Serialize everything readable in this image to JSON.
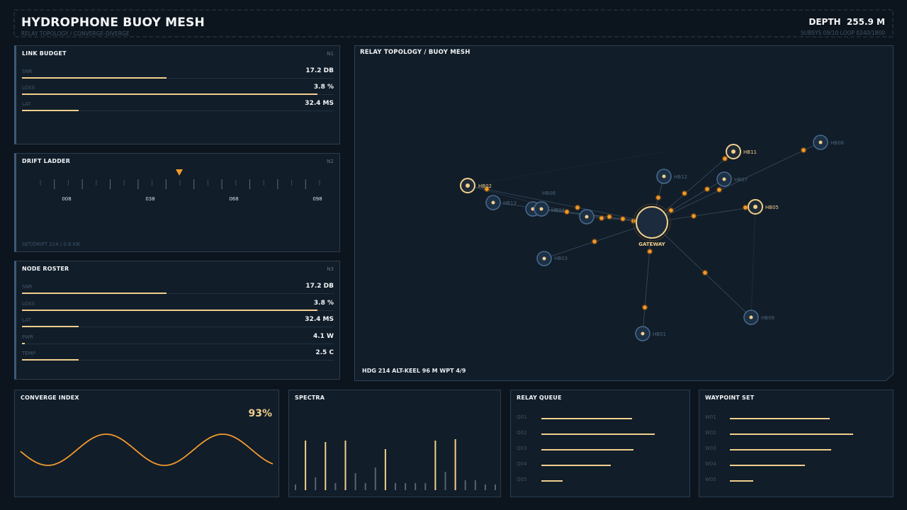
{
  "header": {
    "title": "HYDROPHONE BUOY MESH",
    "subtitle": "RELAY TOPOLOGY / CONVERGE-DIVERGE",
    "depth_label": "DEPTH",
    "depth_value": "255.9 M",
    "subsys": "SUBSYS 09/10  LOOP 0240/1800"
  },
  "link_budget": {
    "title": "LINK BUDGET",
    "tag": "N1",
    "metrics": [
      {
        "label": "SNR",
        "value": "17.2 DB",
        "fill": 0.46
      },
      {
        "label": "LOSS",
        "value": "3.8 %",
        "fill": 0.94
      },
      {
        "label": "LAT",
        "value": "32.4 MS",
        "fill": 0.18
      }
    ]
  },
  "drift_ladder": {
    "title": "DRIFT LADDER",
    "tag": "N2",
    "ticks": [
      "008",
      "038",
      "068",
      "098"
    ],
    "footer": "SET/DRIFT 214 / 0.6 KN"
  },
  "node_roster": {
    "title": "NODE ROSTER",
    "tag": "N3",
    "metrics": [
      {
        "label": "SNR",
        "value": "17.2 DB",
        "fill": 0.46
      },
      {
        "label": "LOSS",
        "value": "3.8 %",
        "fill": 0.94
      },
      {
        "label": "LAT",
        "value": "32.4 MS",
        "fill": 0.18
      },
      {
        "label": "PWR",
        "value": "4.1 W",
        "fill": 0.01
      },
      {
        "label": "TEMP",
        "value": "2.5 C",
        "fill": 0.18
      }
    ]
  },
  "topology": {
    "title": "RELAY TOPOLOGY / BUOY MESH",
    "gateway_label": "GATEWAY",
    "footer": "HDG 214  ALT-KEEL 96 M  WPT 4/9",
    "nodes": [
      "HB02",
      "HB06",
      "HB13",
      "HB04",
      "HB03",
      "HB12",
      "HB07",
      "HB11",
      "HB05",
      "HB08",
      "HB09",
      "HB01"
    ]
  },
  "converge": {
    "title": "CONVERGE INDEX",
    "value": "93%"
  },
  "spectra": {
    "title": "SPECTRA"
  },
  "relay_queue": {
    "title": "RELAY QUEUE",
    "items": [
      {
        "label": "Q01",
        "fill": 0.64
      },
      {
        "label": "Q02",
        "fill": 0.8
      },
      {
        "label": "Q03",
        "fill": 0.65
      },
      {
        "label": "Q04",
        "fill": 0.49
      },
      {
        "label": "Q05",
        "fill": 0.15
      }
    ]
  },
  "waypoint_set": {
    "title": "WAYPOINT SET",
    "items": [
      {
        "label": "W01",
        "fill": 0.64
      },
      {
        "label": "W02",
        "fill": 0.79
      },
      {
        "label": "W03",
        "fill": 0.65
      },
      {
        "label": "W04",
        "fill": 0.48
      },
      {
        "label": "W05",
        "fill": 0.15
      }
    ]
  },
  "colors": {
    "accent": "#f2cf8c",
    "orange": "#f29a2e",
    "node_blue": "#4a6a8c",
    "background": "#0c151e"
  }
}
